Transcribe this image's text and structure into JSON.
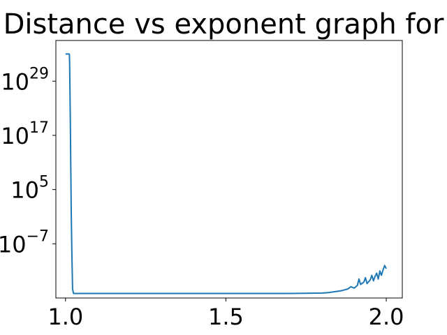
{
  "chart_data": {
    "type": "line",
    "title": "Distance vs exponent graph for",
    "xlabel": "",
    "ylabel": "",
    "x_scale": "linear",
    "y_scale": "log",
    "xlim": [
      0.97,
      2.05
    ],
    "ylim_exponent": [
      -19,
      38
    ],
    "grid": false,
    "x_ticks": [
      {
        "value": 1.0,
        "label": "1.0"
      },
      {
        "value": 1.5,
        "label": "1.5"
      },
      {
        "value": 2.0,
        "label": "2.0"
      }
    ],
    "y_ticks": [
      {
        "exponent": 29,
        "base": "10",
        "sup": "29"
      },
      {
        "exponent": 17,
        "base": "10",
        "sup": "17"
      },
      {
        "exponent": 5,
        "base": "10",
        "sup": "5"
      },
      {
        "exponent": -7,
        "base": "10",
        "sup": "−7"
      }
    ],
    "series": [
      {
        "color": "#1f77b4",
        "x": [
          1.0,
          1.012,
          1.013,
          1.015,
          1.018,
          1.02,
          1.022,
          1.025,
          1.03,
          1.05,
          1.1,
          1.2,
          1.3,
          1.4,
          1.5,
          1.6,
          1.7,
          1.8,
          1.82,
          1.84,
          1.86,
          1.87,
          1.88,
          1.89,
          1.9,
          1.91,
          1.915,
          1.92,
          1.93,
          1.935,
          1.94,
          1.95,
          1.955,
          1.96,
          1.965,
          1.97,
          1.975,
          1.98,
          1.985,
          1.99,
          1.995,
          2.0
        ],
        "y_exponent": [
          35,
          35,
          33,
          20,
          0,
          -10,
          -17,
          -18,
          -18,
          -18,
          -18,
          -18,
          -18,
          -18,
          -18,
          -18,
          -18,
          -17.9,
          -17.8,
          -17.6,
          -17.4,
          -17.2,
          -17.0,
          -16.5,
          -16.8,
          -16.2,
          -14.8,
          -16.0,
          -15.5,
          -14.5,
          -15.8,
          -15.0,
          -14.0,
          -15.2,
          -14.2,
          -13.5,
          -14.8,
          -13.0,
          -14.0,
          -12.8,
          -11.8,
          -12.5
        ]
      }
    ]
  }
}
